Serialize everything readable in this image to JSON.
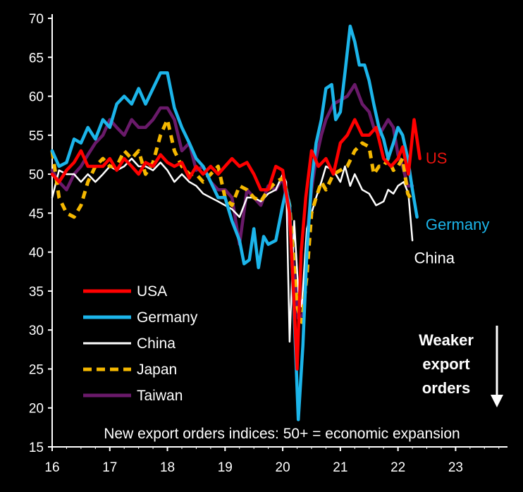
{
  "chart_data": {
    "type": "line",
    "title": "",
    "xlabel": "",
    "ylabel": "",
    "xlim": [
      16,
      23.9
    ],
    "ylim": [
      15,
      70
    ],
    "x_ticks": [
      "16",
      "17",
      "18",
      "19",
      "20",
      "21",
      "22",
      "23"
    ],
    "y_ticks": [
      "15",
      "20",
      "25",
      "30",
      "35",
      "40",
      "45",
      "50",
      "55",
      "60",
      "65",
      "70"
    ],
    "grid": false,
    "legend_position": "bottom-left",
    "footnote": "New export orders indices: 50+ = economic expansion",
    "annotation": [
      "Weaker",
      "export",
      "orders"
    ],
    "end_labels": [
      {
        "text": "US",
        "color": "#e8140f",
        "x": 22.48,
        "y": 52.0
      },
      {
        "text": "Germany",
        "color": "#1cb5ea",
        "x": 22.48,
        "y": 43.5
      },
      {
        "text": "China",
        "color": "#ffffff",
        "x": 22.28,
        "y": 39.2
      }
    ],
    "series": [
      {
        "name": "USA",
        "color": "#ff0000",
        "dash": false,
        "points": [
          [
            16.0,
            50
          ],
          [
            16.12,
            49
          ],
          [
            16.25,
            50.5
          ],
          [
            16.38,
            51.5
          ],
          [
            16.5,
            53
          ],
          [
            16.62,
            51
          ],
          [
            16.75,
            51
          ],
          [
            16.88,
            51
          ],
          [
            17.0,
            52
          ],
          [
            17.12,
            50.5
          ],
          [
            17.25,
            52
          ],
          [
            17.38,
            51
          ],
          [
            17.5,
            50
          ],
          [
            17.62,
            51.5
          ],
          [
            17.75,
            51
          ],
          [
            17.88,
            52.5
          ],
          [
            18.0,
            51.5
          ],
          [
            18.12,
            51
          ],
          [
            18.25,
            51.5
          ],
          [
            18.38,
            49.5
          ],
          [
            18.5,
            51
          ],
          [
            18.62,
            50
          ],
          [
            18.75,
            51
          ],
          [
            18.88,
            50
          ],
          [
            19.0,
            51
          ],
          [
            19.12,
            52
          ],
          [
            19.25,
            51
          ],
          [
            19.38,
            51.5
          ],
          [
            19.5,
            50
          ],
          [
            19.62,
            48
          ],
          [
            19.75,
            48
          ],
          [
            19.88,
            51
          ],
          [
            20.0,
            50.5
          ],
          [
            20.05,
            48
          ],
          [
            20.12,
            45
          ],
          [
            20.2,
            33
          ],
          [
            20.25,
            25
          ],
          [
            20.32,
            40
          ],
          [
            20.4,
            47
          ],
          [
            20.5,
            53
          ],
          [
            20.62,
            51
          ],
          [
            20.75,
            52
          ],
          [
            20.88,
            50
          ],
          [
            21.0,
            54
          ],
          [
            21.12,
            55
          ],
          [
            21.25,
            57
          ],
          [
            21.38,
            55
          ],
          [
            21.5,
            55
          ],
          [
            21.62,
            56
          ],
          [
            21.75,
            52
          ],
          [
            21.88,
            51
          ],
          [
            22.0,
            52
          ],
          [
            22.08,
            53.5
          ],
          [
            22.18,
            50
          ],
          [
            22.28,
            57
          ],
          [
            22.38,
            52
          ]
        ]
      },
      {
        "name": "Germany",
        "color": "#1cb5ea",
        "dash": false,
        "points": [
          [
            16.0,
            53
          ],
          [
            16.12,
            51
          ],
          [
            16.25,
            51.5
          ],
          [
            16.38,
            54.5
          ],
          [
            16.5,
            54
          ],
          [
            16.62,
            56
          ],
          [
            16.75,
            54.5
          ],
          [
            16.88,
            57
          ],
          [
            17.0,
            56
          ],
          [
            17.12,
            59
          ],
          [
            17.25,
            60
          ],
          [
            17.38,
            59
          ],
          [
            17.5,
            61
          ],
          [
            17.62,
            59
          ],
          [
            17.75,
            61
          ],
          [
            17.88,
            63
          ],
          [
            18.0,
            63
          ],
          [
            18.12,
            58.5
          ],
          [
            18.25,
            56
          ],
          [
            18.38,
            54
          ],
          [
            18.5,
            52
          ],
          [
            18.62,
            51
          ],
          [
            18.75,
            49
          ],
          [
            18.88,
            47
          ],
          [
            19.0,
            47
          ],
          [
            19.12,
            44
          ],
          [
            19.25,
            41.5
          ],
          [
            19.33,
            38.5
          ],
          [
            19.42,
            39
          ],
          [
            19.5,
            43
          ],
          [
            19.58,
            38
          ],
          [
            19.67,
            42
          ],
          [
            19.75,
            41
          ],
          [
            19.88,
            41.5
          ],
          [
            20.0,
            46
          ],
          [
            20.06,
            48
          ],
          [
            20.12,
            46
          ],
          [
            20.2,
            32
          ],
          [
            20.27,
            18.5
          ],
          [
            20.35,
            28
          ],
          [
            20.42,
            40
          ],
          [
            20.5,
            49
          ],
          [
            20.58,
            54
          ],
          [
            20.67,
            57
          ],
          [
            20.75,
            61
          ],
          [
            20.85,
            61.5
          ],
          [
            20.92,
            57
          ],
          [
            21.0,
            58
          ],
          [
            21.08,
            63
          ],
          [
            21.17,
            69
          ],
          [
            21.25,
            67
          ],
          [
            21.33,
            64
          ],
          [
            21.42,
            64
          ],
          [
            21.5,
            62
          ],
          [
            21.58,
            59
          ],
          [
            21.67,
            56
          ],
          [
            21.75,
            54.5
          ],
          [
            21.83,
            52
          ],
          [
            21.92,
            54
          ],
          [
            22.0,
            56
          ],
          [
            22.08,
            55
          ],
          [
            22.17,
            52
          ],
          [
            22.25,
            48
          ],
          [
            22.33,
            44.5
          ]
        ]
      },
      {
        "name": "China",
        "color": "#ffffff",
        "dash": false,
        "points": [
          [
            16.0,
            47
          ],
          [
            16.12,
            50.5
          ],
          [
            16.25,
            50
          ],
          [
            16.38,
            50
          ],
          [
            16.5,
            49
          ],
          [
            16.62,
            50
          ],
          [
            16.75,
            49
          ],
          [
            16.88,
            50
          ],
          [
            17.0,
            51
          ],
          [
            17.12,
            50.5
          ],
          [
            17.25,
            51
          ],
          [
            17.38,
            52
          ],
          [
            17.5,
            51
          ],
          [
            17.62,
            51
          ],
          [
            17.75,
            50.5
          ],
          [
            17.88,
            51.5
          ],
          [
            18.0,
            50.5
          ],
          [
            18.12,
            49
          ],
          [
            18.25,
            50
          ],
          [
            18.38,
            49
          ],
          [
            18.5,
            48.5
          ],
          [
            18.62,
            47.5
          ],
          [
            18.75,
            47
          ],
          [
            18.88,
            46.5
          ],
          [
            19.0,
            46
          ],
          [
            19.12,
            45.5
          ],
          [
            19.25,
            44.5
          ],
          [
            19.38,
            47
          ],
          [
            19.5,
            47
          ],
          [
            19.62,
            46.5
          ],
          [
            19.75,
            47.5
          ],
          [
            19.88,
            48
          ],
          [
            20.0,
            50
          ],
          [
            20.06,
            49
          ],
          [
            20.12,
            28.5
          ],
          [
            20.2,
            44
          ],
          [
            20.27,
            35
          ],
          [
            20.33,
            33
          ],
          [
            20.42,
            43
          ],
          [
            20.5,
            45
          ],
          [
            20.58,
            47
          ],
          [
            20.67,
            49
          ],
          [
            20.75,
            51
          ],
          [
            20.88,
            50.5
          ],
          [
            21.0,
            49
          ],
          [
            21.08,
            51
          ],
          [
            21.17,
            48.5
          ],
          [
            21.25,
            50
          ],
          [
            21.38,
            48
          ],
          [
            21.5,
            47.5
          ],
          [
            21.62,
            46
          ],
          [
            21.75,
            46.5
          ],
          [
            21.83,
            48
          ],
          [
            21.92,
            47.5
          ],
          [
            22.0,
            48.5
          ],
          [
            22.1,
            49
          ],
          [
            22.18,
            47.5
          ],
          [
            22.25,
            41.5
          ]
        ]
      },
      {
        "name": "Japan",
        "color": "#f5b800",
        "dash": true,
        "points": [
          [
            16.0,
            53
          ],
          [
            16.12,
            47
          ],
          [
            16.25,
            45
          ],
          [
            16.38,
            44.5
          ],
          [
            16.5,
            46
          ],
          [
            16.62,
            49
          ],
          [
            16.75,
            51
          ],
          [
            16.88,
            52
          ],
          [
            17.0,
            51
          ],
          [
            17.12,
            51
          ],
          [
            17.25,
            53
          ],
          [
            17.38,
            52
          ],
          [
            17.5,
            53
          ],
          [
            17.62,
            50
          ],
          [
            17.75,
            51.5
          ],
          [
            17.88,
            55
          ],
          [
            18.0,
            57
          ],
          [
            18.12,
            53
          ],
          [
            18.25,
            51
          ],
          [
            18.38,
            50
          ],
          [
            18.5,
            50
          ],
          [
            18.62,
            49
          ],
          [
            18.75,
            50
          ],
          [
            18.88,
            51
          ],
          [
            19.0,
            47
          ],
          [
            19.12,
            46
          ],
          [
            19.25,
            48.5
          ],
          [
            19.38,
            48
          ],
          [
            19.5,
            47
          ],
          [
            19.62,
            46.5
          ],
          [
            19.75,
            48
          ],
          [
            19.88,
            49
          ],
          [
            20.0,
            49.5
          ],
          [
            20.06,
            48
          ],
          [
            20.12,
            46
          ],
          [
            20.2,
            38
          ],
          [
            20.25,
            33
          ],
          [
            20.33,
            31
          ],
          [
            20.42,
            37
          ],
          [
            20.5,
            45
          ],
          [
            20.58,
            47
          ],
          [
            20.67,
            49
          ],
          [
            20.75,
            48
          ],
          [
            20.88,
            50
          ],
          [
            21.0,
            50.5
          ],
          [
            21.12,
            51
          ],
          [
            21.25,
            53
          ],
          [
            21.38,
            54
          ],
          [
            21.5,
            53.5
          ],
          [
            21.58,
            50
          ],
          [
            21.67,
            51
          ],
          [
            21.75,
            51
          ],
          [
            21.83,
            52
          ],
          [
            21.92,
            50.5
          ],
          [
            22.0,
            51
          ],
          [
            22.08,
            52
          ],
          [
            22.17,
            47.5
          ],
          [
            22.25,
            46.5
          ]
        ]
      },
      {
        "name": "Taiwan",
        "color": "#6a1a6a",
        "dash": false,
        "points": [
          [
            16.0,
            50.5
          ],
          [
            16.12,
            49
          ],
          [
            16.25,
            48
          ],
          [
            16.38,
            50
          ],
          [
            16.5,
            51
          ],
          [
            16.62,
            52.5
          ],
          [
            16.75,
            54
          ],
          [
            16.88,
            55
          ],
          [
            17.0,
            57
          ],
          [
            17.12,
            56
          ],
          [
            17.25,
            55
          ],
          [
            17.38,
            57
          ],
          [
            17.5,
            56
          ],
          [
            17.62,
            56
          ],
          [
            17.75,
            57
          ],
          [
            17.88,
            58.5
          ],
          [
            18.0,
            58.5
          ],
          [
            18.12,
            57
          ],
          [
            18.25,
            53
          ],
          [
            18.38,
            54
          ],
          [
            18.5,
            50.5
          ],
          [
            18.62,
            51
          ],
          [
            18.75,
            49
          ],
          [
            18.88,
            48
          ],
          [
            19.0,
            48
          ],
          [
            19.12,
            47
          ],
          [
            19.25,
            41
          ],
          [
            19.38,
            48
          ],
          [
            19.5,
            47
          ],
          [
            19.62,
            46
          ],
          [
            19.75,
            48.5
          ],
          [
            19.88,
            48
          ],
          [
            20.0,
            49.5
          ],
          [
            20.06,
            47
          ],
          [
            20.12,
            44
          ],
          [
            20.2,
            37
          ],
          [
            20.27,
            31.5
          ],
          [
            20.35,
            32
          ],
          [
            20.42,
            42
          ],
          [
            20.5,
            48
          ],
          [
            20.58,
            52
          ],
          [
            20.67,
            55
          ],
          [
            20.75,
            57
          ],
          [
            20.88,
            59
          ],
          [
            21.0,
            59.5
          ],
          [
            21.12,
            60
          ],
          [
            21.25,
            61.5
          ],
          [
            21.38,
            59
          ],
          [
            21.5,
            58
          ],
          [
            21.58,
            56
          ],
          [
            21.67,
            55
          ],
          [
            21.75,
            56
          ],
          [
            21.83,
            57
          ],
          [
            21.92,
            56
          ],
          [
            22.0,
            52.5
          ],
          [
            22.08,
            51
          ],
          [
            22.17,
            48.5
          ],
          [
            22.25,
            48.5
          ]
        ]
      }
    ]
  }
}
